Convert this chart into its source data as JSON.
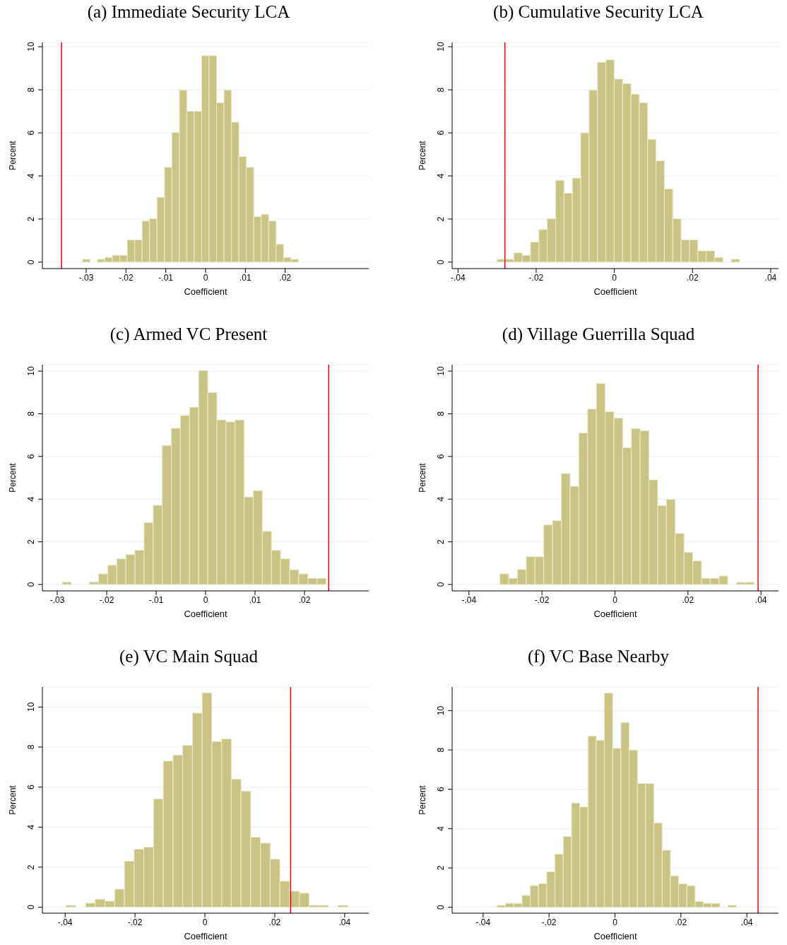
{
  "chart_data": [
    {
      "type": "histogram",
      "title": "(a) Immediate Security LCA",
      "xlabel": "Coefficient",
      "ylabel": "Percent",
      "color": "#cbc383",
      "grid": "y",
      "bins": [
        -0.0309,
        -0.02903,
        -0.02716,
        -0.02529,
        -0.02342,
        -0.02155,
        -0.01968,
        -0.01781,
        -0.01594,
        -0.01407,
        -0.0122,
        -0.01033,
        -0.00846,
        -0.00659,
        -0.00472,
        -0.00285,
        -0.00098,
        0.00089,
        0.00276,
        0.00463,
        0.0065,
        0.00837,
        0.01024,
        0.01211,
        0.01398,
        0.01585,
        0.01772,
        0.01959,
        0.02146,
        0.02333
      ],
      "values": [
        0.13,
        0,
        0.13,
        0.22,
        0.32,
        0.32,
        1.03,
        1.03,
        1.91,
        2.02,
        3.01,
        4.4,
        6.01,
        7.99,
        7.0,
        7.0,
        9.58,
        9.58,
        7.4,
        7.99,
        6.5,
        4.9,
        4.4,
        2.11,
        2.22,
        1.91,
        0.83,
        0.22,
        0.13
      ],
      "xlim": [
        -0.041,
        0.041
      ],
      "xticks": [
        {
          "value": -0.03,
          "label": "-.03"
        },
        {
          "value": -0.02,
          "label": "-.02"
        },
        {
          "value": -0.01,
          "label": "-.01"
        },
        {
          "value": 0,
          "label": "0"
        },
        {
          "value": 0.01,
          "label": ".01"
        },
        {
          "value": 0.02,
          "label": ".02"
        }
      ],
      "ylim": [
        -0.3,
        10.2
      ],
      "yticks": [
        0,
        2,
        4,
        6,
        8,
        10
      ],
      "ref_lines": [
        {
          "axis": "x",
          "value": -0.0362,
          "color": "#e8000b"
        }
      ]
    },
    {
      "type": "histogram",
      "title": "(b) Cumulative Security LCA",
      "xlabel": "Coefficient",
      "ylabel": "Percent",
      "color": "#cbc383",
      "grid": "y",
      "bins": [
        -0.03,
        -0.02786,
        -0.02572,
        -0.02358,
        -0.02144,
        -0.0193,
        -0.01716,
        -0.01502,
        -0.01288,
        -0.01074,
        -0.0086,
        -0.00646,
        -0.00432,
        -0.00218,
        -4e-05,
        0.0021,
        0.00424,
        0.00638,
        0.00852,
        0.01066,
        0.0128,
        0.01494,
        0.01708,
        0.01922,
        0.02136,
        0.0235,
        0.02564,
        0.02778,
        0.02992,
        0.03206
      ],
      "values": [
        0.13,
        0.13,
        0.43,
        0.32,
        0.93,
        1.51,
        2.01,
        3.8,
        3.2,
        3.9,
        6.0,
        7.98,
        9.28,
        9.39,
        8.5,
        8.29,
        7.8,
        7.4,
        5.7,
        4.7,
        3.4,
        2.01,
        1.03,
        1.03,
        0.52,
        0.52,
        0.22,
        0,
        0.13
      ],
      "xlim": [
        -0.0415,
        0.042
      ],
      "xticks": [
        {
          "value": -0.04,
          "label": "-.04"
        },
        {
          "value": -0.02,
          "label": "-.02"
        },
        {
          "value": 0,
          "label": "0"
        },
        {
          "value": 0.02,
          "label": ".02"
        },
        {
          "value": 0.04,
          "label": ".04"
        }
      ],
      "ylim": [
        -0.3,
        10.2
      ],
      "yticks": [
        0,
        2,
        4,
        6,
        8,
        10
      ],
      "ref_lines": [
        {
          "axis": "x",
          "value": -0.028,
          "color": "#e8000b"
        }
      ]
    },
    {
      "type": "histogram",
      "title": "(c) Armed VC Present",
      "xlabel": "Coefficient",
      "ylabel": "Percent",
      "color": "#cbc383",
      "grid": "y",
      "bins": [
        -0.029,
        -0.02716,
        -0.02532,
        -0.02348,
        -0.02164,
        -0.0198,
        -0.01796,
        -0.01612,
        -0.01428,
        -0.01244,
        -0.0106,
        -0.00876,
        -0.00692,
        -0.00508,
        -0.00324,
        -0.0014,
        0.00044,
        0.00228,
        0.00412,
        0.00596,
        0.0078,
        0.00964,
        0.01148,
        0.01332,
        0.01516,
        0.017,
        0.01884,
        0.02068,
        0.02252,
        0.02436
      ],
      "values": [
        0.11,
        0,
        0,
        0.11,
        0.5,
        0.9,
        1.2,
        1.4,
        1.6,
        2.9,
        3.71,
        6.52,
        7.32,
        7.92,
        8.31,
        10.03,
        9.0,
        7.71,
        7.62,
        7.71,
        4.1,
        4.4,
        2.49,
        1.6,
        1.2,
        0.69,
        0.5,
        0.29,
        0.29
      ],
      "xlim": [
        -0.033,
        0.033
      ],
      "xticks": [
        {
          "value": -0.03,
          "label": "-.03"
        },
        {
          "value": -0.02,
          "label": "-.02"
        },
        {
          "value": -0.01,
          "label": "-.01"
        },
        {
          "value": 0,
          "label": "0"
        },
        {
          "value": 0.01,
          "label": ".01"
        },
        {
          "value": 0.02,
          "label": ".02"
        }
      ],
      "ylim": [
        -0.3,
        10.3
      ],
      "yticks": [
        0,
        2,
        4,
        6,
        8,
        10
      ],
      "ref_lines": [
        {
          "axis": "x",
          "value": 0.0249,
          "color": "#e8000b"
        }
      ]
    },
    {
      "type": "histogram",
      "title": "(d) Village Guerrilla Squad",
      "xlabel": "Coefficient",
      "ylabel": "Percent",
      "color": "#cbc383",
      "grid": "y",
      "bins": [
        -0.0315,
        -0.0291,
        -0.0267,
        -0.0243,
        -0.0219,
        -0.0195,
        -0.0171,
        -0.0147,
        -0.0123,
        -0.0099,
        -0.0075,
        -0.0051,
        -0.0027,
        -0.0003,
        0.0021,
        0.0045,
        0.0069,
        0.0093,
        0.0117,
        0.0141,
        0.0165,
        0.0189,
        0.0213,
        0.0237,
        0.0261,
        0.0285,
        0.0309,
        0.0333,
        0.0357,
        0.0381
      ],
      "values": [
        0.5,
        0.29,
        0.7,
        1.3,
        1.3,
        2.79,
        2.99,
        5.2,
        4.6,
        7.1,
        8.22,
        9.42,
        8.1,
        7.8,
        6.41,
        7.31,
        7.21,
        4.9,
        3.7,
        3.99,
        2.39,
        1.5,
        1.1,
        0.29,
        0.29,
        0.4,
        0,
        0.1,
        0.1
      ],
      "xlim": [
        -0.0446,
        0.0448
      ],
      "xticks": [
        {
          "value": -0.04,
          "label": "-.04"
        },
        {
          "value": -0.02,
          "label": "-.02"
        },
        {
          "value": 0,
          "label": "0"
        },
        {
          "value": 0.02,
          "label": ".02"
        },
        {
          "value": 0.04,
          "label": ".04"
        }
      ],
      "ylim": [
        -0.3,
        10.3
      ],
      "yticks": [
        0,
        2,
        4,
        6,
        8,
        10
      ],
      "ref_lines": [
        {
          "axis": "x",
          "value": 0.0392,
          "color": "#e8000b"
        }
      ]
    },
    {
      "type": "histogram",
      "title": "(e) VC Main Squad",
      "xlabel": "Coefficient",
      "ylabel": "Percent",
      "color": "#cbc383",
      "grid": "y",
      "bins": [
        -0.0397,
        -0.03692,
        -0.03414,
        -0.03136,
        -0.02858,
        -0.0258,
        -0.02302,
        -0.02024,
        -0.01746,
        -0.01468,
        -0.0119,
        -0.00912,
        -0.00634,
        -0.00356,
        -0.00078,
        0.002,
        0.00478,
        0.00756,
        0.01034,
        0.01312,
        0.0159,
        0.01868,
        0.02146,
        0.02424,
        0.02702,
        0.0298,
        0.03258,
        0.03536,
        0.03814,
        0.04092
      ],
      "values": [
        0.09,
        0,
        0.2,
        0.4,
        0.3,
        0.9,
        2.3,
        2.9,
        3.0,
        5.41,
        7.3,
        7.6,
        8.09,
        9.7,
        10.71,
        8.28,
        8.4,
        6.4,
        5.8,
        3.5,
        3.2,
        2.4,
        1.3,
        0.8,
        0.7,
        0.09,
        0.09,
        0,
        0.09
      ],
      "xlim": [
        -0.0465,
        0.0469
      ],
      "xticks": [
        {
          "value": -0.04,
          "label": "-.04"
        },
        {
          "value": -0.02,
          "label": "-.02"
        },
        {
          "value": 0,
          "label": "0"
        },
        {
          "value": 0.02,
          "label": ".02"
        },
        {
          "value": 0.04,
          "label": ".04"
        }
      ],
      "ylim": [
        -0.3,
        11
      ],
      "yticks": [
        0,
        2,
        4,
        6,
        8,
        10
      ],
      "ref_lines": [
        {
          "axis": "x",
          "value": 0.02455,
          "color": "#e8000b"
        }
      ]
    },
    {
      "type": "histogram",
      "title": "(f) VC Base Nearby",
      "xlabel": "Coefficient",
      "ylabel": "Percent",
      "color": "#cbc383",
      "grid": "y",
      "bins": [
        -0.0357,
        -0.0332,
        -0.0307,
        -0.0282,
        -0.0257,
        -0.0232,
        -0.0207,
        -0.0182,
        -0.0157,
        -0.0132,
        -0.0107,
        -0.0082,
        -0.0057,
        -0.0032,
        -0.0007,
        0.0018,
        0.0043,
        0.0068,
        0.0093,
        0.0118,
        0.0143,
        0.0168,
        0.0193,
        0.0218,
        0.0243,
        0.0268,
        0.0293,
        0.0318,
        0.0343,
        0.0368
      ],
      "values": [
        0.1,
        0.2,
        0.2,
        0.6,
        1.1,
        1.2,
        1.81,
        2.7,
        3.6,
        5.3,
        5.1,
        8.7,
        8.49,
        10.9,
        8.08,
        9.4,
        7.99,
        6.29,
        6.29,
        4.29,
        2.9,
        1.6,
        1.2,
        1.1,
        0.3,
        0.2,
        0.2,
        0,
        0.1
      ],
      "xlim": [
        -0.0494,
        0.0496
      ],
      "xticks": [
        {
          "value": -0.04,
          "label": "-.04"
        },
        {
          "value": -0.02,
          "label": "-.02"
        },
        {
          "value": 0,
          "label": "0"
        },
        {
          "value": 0.02,
          "label": ".02"
        },
        {
          "value": 0.04,
          "label": ".04"
        }
      ],
      "ylim": [
        -0.3,
        11.2
      ],
      "yticks": [
        0,
        2,
        4,
        6,
        8,
        10
      ],
      "ref_lines": [
        {
          "axis": "x",
          "value": 0.0434,
          "color": "#e8000b"
        }
      ]
    }
  ]
}
